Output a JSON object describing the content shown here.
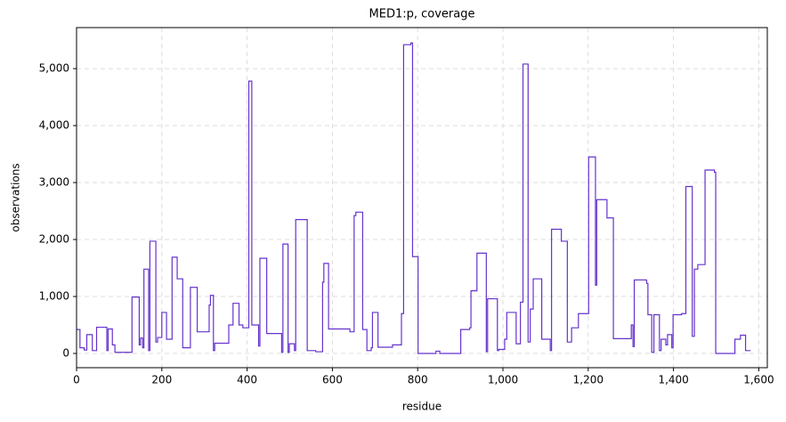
{
  "chart_data": {
    "type": "line",
    "step": "post",
    "title": "MED1:p, coverage",
    "xlabel": "residue",
    "ylabel": "observations",
    "x": [
      0,
      8,
      18,
      24,
      37,
      47,
      71,
      74,
      84,
      90,
      130,
      147,
      150,
      155,
      158,
      169,
      172,
      186,
      190,
      200,
      211,
      224,
      236,
      249,
      267,
      283,
      311,
      314,
      321,
      324,
      357,
      367,
      381,
      390,
      404,
      411,
      427,
      430,
      446,
      481,
      484,
      496,
      499,
      511,
      514,
      541,
      561,
      577,
      580,
      591,
      641,
      651,
      655,
      671,
      681,
      691,
      694,
      707,
      741,
      762,
      767,
      784,
      788,
      801,
      843,
      852,
      901,
      922,
      925,
      939,
      961,
      964,
      987,
      990,
      1004,
      1009,
      1031,
      1041,
      1047,
      1059,
      1064,
      1071,
      1091,
      1111,
      1114,
      1137,
      1151,
      1161,
      1177,
      1201,
      1217,
      1220,
      1244,
      1259,
      1301,
      1305,
      1308,
      1337,
      1340,
      1349,
      1354,
      1367,
      1371,
      1382,
      1386,
      1396,
      1399,
      1419,
      1429,
      1444,
      1449,
      1457,
      1474,
      1496,
      1499,
      1544,
      1557,
      1569,
      1581
    ],
    "series": [
      {
        "color": "#6633cc",
        "values": [
          420,
          100,
          60,
          330,
          50,
          460,
          50,
          430,
          150,
          20,
          990,
          150,
          270,
          100,
          1480,
          50,
          1970,
          200,
          280,
          720,
          250,
          1690,
          1310,
          100,
          1160,
          380,
          850,
          1020,
          50,
          180,
          500,
          880,
          500,
          450,
          4780,
          500,
          130,
          1670,
          350,
          20,
          1920,
          20,
          170,
          50,
          2350,
          50,
          30,
          1250,
          1580,
          430,
          380,
          2420,
          2480,
          420,
          50,
          100,
          720,
          110,
          150,
          700,
          5420,
          5450,
          1700,
          0,
          40,
          0,
          420,
          450,
          1100,
          1760,
          30,
          960,
          50,
          70,
          250,
          720,
          170,
          900,
          5080,
          200,
          780,
          1310,
          250,
          50,
          2180,
          1970,
          200,
          450,
          700,
          3450,
          1200,
          2700,
          2380,
          260,
          500,
          120,
          1290,
          1230,
          680,
          20,
          680,
          50,
          250,
          150,
          330,
          100,
          680,
          700,
          2930,
          300,
          1480,
          1560,
          3220,
          3180,
          0,
          250,
          320,
          50,
          50
        ]
      }
    ],
    "xlim": [
      0,
      1620
    ],
    "ylim": [
      -250,
      5720
    ],
    "xticks": [
      0,
      200,
      400,
      600,
      800,
      {
        "value": 1000,
        "label": "1,000"
      },
      {
        "value": 1200,
        "label": "1,200"
      },
      {
        "value": 1400,
        "label": "1,400"
      },
      {
        "value": 1600,
        "label": "1,600"
      }
    ],
    "yticks": [
      0,
      {
        "value": 1000,
        "label": "1,000"
      },
      {
        "value": 2000,
        "label": "2,000"
      },
      {
        "value": 3000,
        "label": "3,000"
      },
      {
        "value": 4000,
        "label": "4,000"
      },
      {
        "value": 5000,
        "label": "5,000"
      }
    ],
    "grid": true
  }
}
